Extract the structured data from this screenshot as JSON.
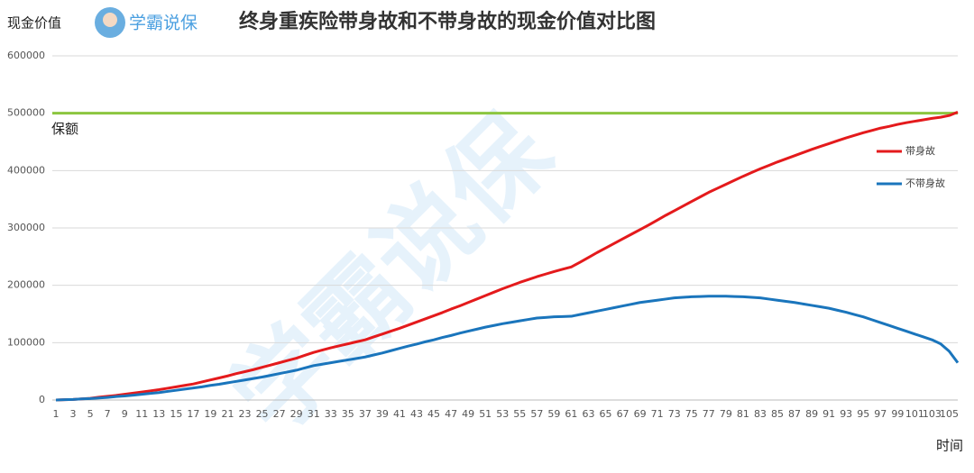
{
  "chart_data": {
    "type": "line",
    "title": "终身重疾险带身故和不带身故的现金价值对比图",
    "y_label": "现金价值",
    "x_label": "时间",
    "logo_text": "学霸说保",
    "watermark": "学霸说保",
    "ylim": [
      0,
      600000
    ],
    "yticks": [
      0,
      100000,
      200000,
      300000,
      400000,
      500000,
      600000
    ],
    "grid": true,
    "legend": "right",
    "reference_line": {
      "value": 500000,
      "label": "保额",
      "color": "#8cc63f"
    },
    "categories": [
      1,
      null,
      3,
      null,
      5,
      null,
      7,
      null,
      9,
      null,
      11,
      null,
      13,
      null,
      15,
      null,
      17,
      null,
      19,
      null,
      21,
      null,
      23,
      null,
      25,
      null,
      27,
      null,
      29,
      null,
      31,
      null,
      33,
      null,
      35,
      null,
      37,
      null,
      39,
      null,
      41,
      null,
      43,
      null,
      45,
      null,
      47,
      null,
      49,
      null,
      51,
      null,
      53,
      null,
      55,
      null,
      57,
      null,
      59,
      null,
      61,
      null,
      63,
      null,
      65,
      null,
      67,
      null,
      69,
      null,
      71,
      null,
      73,
      null,
      75,
      null,
      77,
      null,
      79,
      null,
      81,
      null,
      83,
      null,
      85,
      null,
      87,
      null,
      89,
      null,
      91,
      null,
      93,
      null,
      95,
      null,
      97,
      null,
      99,
      null,
      101,
      null,
      103,
      null,
      105,
      null
    ],
    "series": [
      {
        "name": "带身故",
        "color": "#e41a1c",
        "values": [
          0,
          500,
          1000,
          2000,
          3000,
          5000,
          6500,
          8000,
          10000,
          12000,
          14000,
          16000,
          18000,
          20500,
          23000,
          25500,
          28000,
          31500,
          35000,
          38500,
          42000,
          46000,
          49500,
          53000,
          57000,
          61000,
          65000,
          69000,
          73000,
          78000,
          83000,
          87000,
          91000,
          94500,
          98000,
          101500,
          105000,
          110000,
          115000,
          120000,
          125000,
          130500,
          136000,
          141500,
          147000,
          152500,
          158500,
          164000,
          170000,
          176000,
          182000,
          188000,
          194000,
          199500,
          205000,
          210000,
          215000,
          219500,
          224000,
          228000,
          232000,
          240000,
          248500,
          257000,
          265000,
          273000,
          281000,
          289000,
          297000,
          305000,
          313500,
          322000,
          330000,
          338000,
          346000,
          354000,
          362000,
          369000,
          376000,
          383000,
          390000,
          396500,
          403000,
          409000,
          415000,
          420500,
          426000,
          431500,
          437000,
          442000,
          447000,
          452000,
          457000,
          461500,
          466000,
          470000,
          474000,
          477000,
          480500,
          483500,
          486000,
          488500,
          491000,
          493000,
          496000,
          502000
        ]
      },
      {
        "name": "不带身故",
        "color": "#1a75bc",
        "values": [
          0,
          500,
          1000,
          2000,
          2500,
          3500,
          4500,
          6000,
          7000,
          8500,
          10000,
          11500,
          13000,
          15000,
          17000,
          19000,
          21000,
          23000,
          25500,
          27500,
          30000,
          32500,
          35000,
          37500,
          40000,
          43000,
          46000,
          49000,
          52000,
          56000,
          60000,
          62500,
          65000,
          67500,
          70000,
          72500,
          75000,
          78500,
          82000,
          86000,
          90000,
          94000,
          97500,
          101500,
          105000,
          109000,
          112500,
          116500,
          120000,
          123500,
          127000,
          130000,
          133000,
          135500,
          138000,
          140500,
          143000,
          144000,
          145000,
          145500,
          146000,
          149000,
          152000,
          155000,
          158000,
          161000,
          164000,
          167000,
          170000,
          172000,
          174000,
          176000,
          178000,
          179000,
          180000,
          180500,
          181000,
          181000,
          181000,
          180500,
          180000,
          179000,
          178000,
          176000,
          174000,
          172000,
          170000,
          167500,
          165000,
          162500,
          160000,
          156500,
          153000,
          149000,
          145000,
          140000,
          135000,
          130000,
          125000,
          120000,
          115000,
          110000,
          105000,
          98000,
          85000,
          65000
        ]
      }
    ]
  }
}
